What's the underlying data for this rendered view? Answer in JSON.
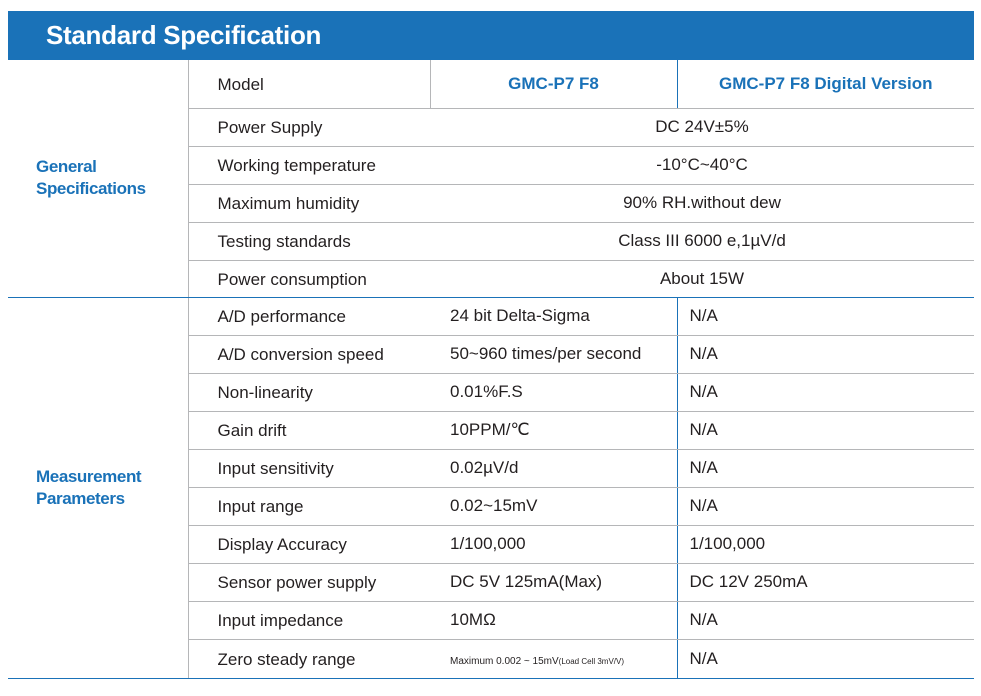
{
  "title": "Standard Specification",
  "general": {
    "section_label_line1": "General",
    "section_label_line2": "Specifications",
    "header": {
      "param": "Model",
      "col_a": "GMC-P7 F8",
      "col_b": "GMC-P7 F8 Digital Version"
    },
    "rows": [
      {
        "param": "Power Supply",
        "value": "DC 24V±5%"
      },
      {
        "param": "Working temperature",
        "value": "-10°C~40°C"
      },
      {
        "param": "Maximum humidity",
        "value": "90% RH.without dew"
      },
      {
        "param": "Testing standards",
        "value": "Class III 6000 e,1µV/d"
      },
      {
        "param": "Power consumption",
        "value": "About 15W"
      }
    ]
  },
  "measurement": {
    "section_label_line1": "Measurement",
    "section_label_line2": "Parameters",
    "rows": [
      {
        "param": "A/D performance",
        "a": "24 bit Delta-Sigma",
        "b": "N/A"
      },
      {
        "param": "A/D conversion speed",
        "a": "50~960 times/per second",
        "b": "N/A"
      },
      {
        "param": "Non-linearity",
        "a": "0.01%F.S",
        "b": "N/A"
      },
      {
        "param": "Gain drift",
        "a": "10PPM/℃",
        "b": "N/A"
      },
      {
        "param": "Input sensitivity",
        "a": "0.02µV/d",
        "b": "N/A"
      },
      {
        "param": "Input range",
        "a": "0.02~15mV",
        "b": "N/A"
      },
      {
        "param": "Display Accuracy",
        "a": "1/100,000",
        "b": "1/100,000"
      },
      {
        "param": "Sensor power supply",
        "a": "DC 5V 125mA(Max)",
        "b": "DC 12V 250mA"
      },
      {
        "param": "Input impedance",
        "a": "10MΩ",
        "b": "N/A"
      },
      {
        "param": "Zero steady range",
        "a_main": "Maximum 0.002 ~ 15mV",
        "a_note": "(Load Cell 3mV/V)",
        "b": "N/A"
      }
    ]
  },
  "colors": {
    "accent": "#1a72b8",
    "divider": "#b5b6b8",
    "text": "#231f20"
  }
}
